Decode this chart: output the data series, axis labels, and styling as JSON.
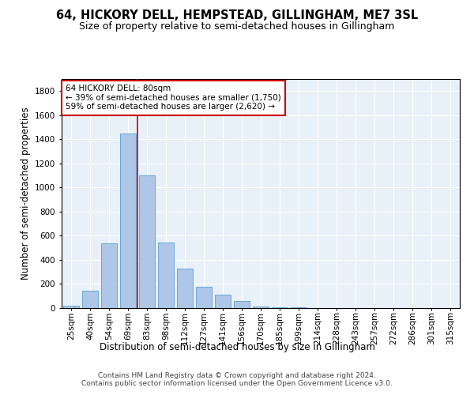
{
  "title": "64, HICKORY DELL, HEMPSTEAD, GILLINGHAM, ME7 3SL",
  "subtitle": "Size of property relative to semi-detached houses in Gillingham",
  "xlabel": "Distribution of semi-detached houses by size in Gillingham",
  "ylabel": "Number of semi-detached properties",
  "categories": [
    "25sqm",
    "40sqm",
    "54sqm",
    "69sqm",
    "83sqm",
    "98sqm",
    "112sqm",
    "127sqm",
    "141sqm",
    "156sqm",
    "170sqm",
    "185sqm",
    "199sqm",
    "214sqm",
    "228sqm",
    "243sqm",
    "257sqm",
    "272sqm",
    "286sqm",
    "301sqm",
    "315sqm"
  ],
  "values": [
    20,
    145,
    540,
    1450,
    1100,
    545,
    330,
    175,
    110,
    60,
    15,
    5,
    5,
    0,
    0,
    0,
    0,
    0,
    0,
    0,
    0
  ],
  "bar_color": "#aec6e8",
  "bar_edge_color": "#5a9fd4",
  "vline_x_index": 4,
  "vline_color": "#cc0000",
  "annotation_text": "64 HICKORY DELL: 80sqm\n← 39% of semi-detached houses are smaller (1,750)\n59% of semi-detached houses are larger (2,620) →",
  "annotation_box_color": "#ffffff",
  "annotation_box_edge_color": "#cc0000",
  "annotation_fontsize": 7.5,
  "title_fontsize": 10.5,
  "subtitle_fontsize": 9,
  "xlabel_fontsize": 8.5,
  "ylabel_fontsize": 8.5,
  "tick_fontsize": 7.5,
  "footer_text": "Contains HM Land Registry data © Crown copyright and database right 2024.\nContains public sector information licensed under the Open Government Licence v3.0.",
  "footer_fontsize": 6.5,
  "background_color": "#e8f0f8",
  "ylim": [
    0,
    1900
  ],
  "yticks": [
    0,
    200,
    400,
    600,
    800,
    1000,
    1200,
    1400,
    1600,
    1800
  ]
}
